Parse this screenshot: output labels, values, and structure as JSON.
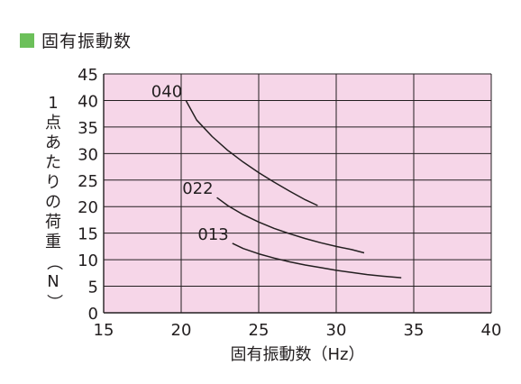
{
  "title": "固有振動数",
  "colors": {
    "title_marker": "#6cc05a",
    "plot_background": "#f6d6e8",
    "grid": "#231f20",
    "curve": "#231f20"
  },
  "chart_data": {
    "type": "line",
    "title": "固有振動数",
    "xlabel": "固有振動数（Hz）",
    "ylabel": "1点あたりの荷重（N）",
    "xlim": [
      15,
      40
    ],
    "ylim": [
      0,
      45
    ],
    "xticks": [
      15,
      20,
      25,
      30,
      35,
      40
    ],
    "yticks": [
      0,
      5,
      10,
      15,
      20,
      25,
      30,
      35,
      40,
      45
    ],
    "grid": true,
    "series": [
      {
        "name": "040",
        "x": [
          20.3,
          21,
          22,
          23,
          24,
          25,
          26,
          27,
          28,
          28.8
        ],
        "y": [
          40,
          36.3,
          33.2,
          30.6,
          28.4,
          26.4,
          24.6,
          22.9,
          21.3,
          20.2
        ]
      },
      {
        "name": "022",
        "x": [
          22.3,
          23,
          24,
          25,
          26,
          27,
          28,
          29,
          30,
          31,
          31.8
        ],
        "y": [
          21.7,
          20.2,
          18.5,
          17.1,
          15.9,
          14.9,
          14.0,
          13.2,
          12.5,
          11.9,
          11.3
        ]
      },
      {
        "name": "013",
        "x": [
          23.3,
          24,
          25,
          26,
          27,
          28,
          29,
          30,
          31,
          32,
          33,
          34.2
        ],
        "y": [
          13.1,
          12.1,
          11.1,
          10.3,
          9.6,
          9.0,
          8.5,
          8.0,
          7.6,
          7.2,
          6.9,
          6.6
        ]
      }
    ]
  }
}
